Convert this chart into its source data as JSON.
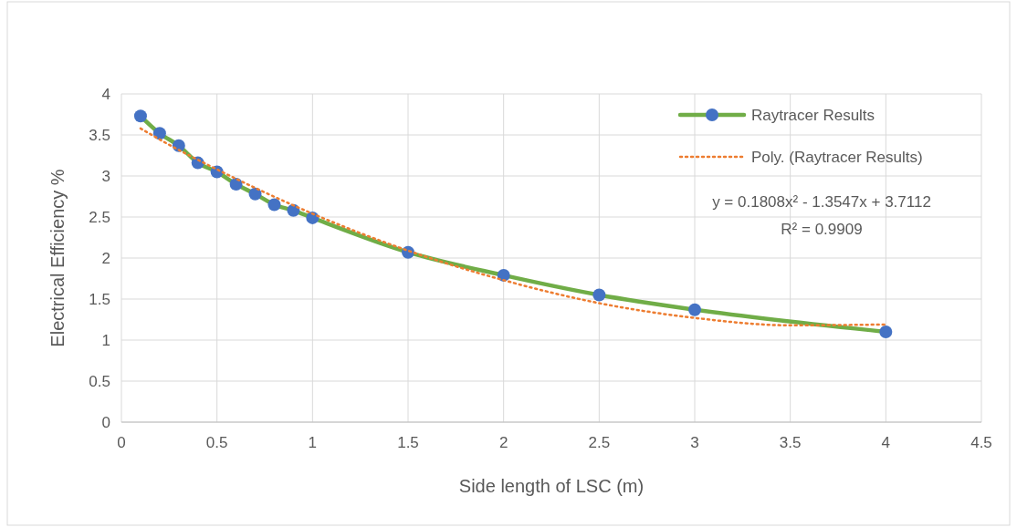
{
  "chart_data": {
    "type": "line",
    "xlabel": "Side length of LSC (m)",
    "ylabel": "Electrical Efficiency %",
    "xlim": [
      0,
      4.5
    ],
    "xticks": [
      0,
      0.5,
      1,
      1.5,
      2,
      2.5,
      3,
      3.5,
      4,
      4.5
    ],
    "ylim": [
      0,
      4
    ],
    "yticks": [
      0,
      0.5,
      1,
      1.5,
      2,
      2.5,
      3,
      3.5,
      4
    ],
    "grid": true,
    "legend": "top right",
    "series": [
      {
        "name": "Raytracer Results",
        "color": "#70ad47",
        "marker": "circle",
        "line_style": "solid",
        "x": [
          0.1,
          0.2,
          0.3,
          0.4,
          0.5,
          0.6,
          0.7,
          0.8,
          0.9,
          1,
          1.5,
          2,
          2.5,
          3,
          4
        ],
        "values": [
          3.73,
          3.52,
          3.37,
          3.16,
          3.05,
          2.9,
          2.78,
          2.65,
          2.58,
          2.49,
          2.07,
          1.79,
          1.55,
          1.37,
          1.1
        ]
      },
      {
        "name": "Poly. (Raytracer Results)",
        "color": "#ed7d31",
        "marker": "none",
        "line_style": "dotted",
        "x": [
          0.1,
          0.25,
          0.5,
          0.75,
          1,
          1.5,
          2,
          2.5,
          3,
          3.5,
          4
        ],
        "values": [
          3.58,
          3.38,
          3.08,
          2.8,
          2.54,
          2.09,
          1.73,
          1.45,
          1.27,
          1.18,
          1.19
        ]
      }
    ],
    "annotations": [
      "y = 0.1808x² - 1.3547x + 3.7112",
      "R² = 0.9909"
    ]
  }
}
